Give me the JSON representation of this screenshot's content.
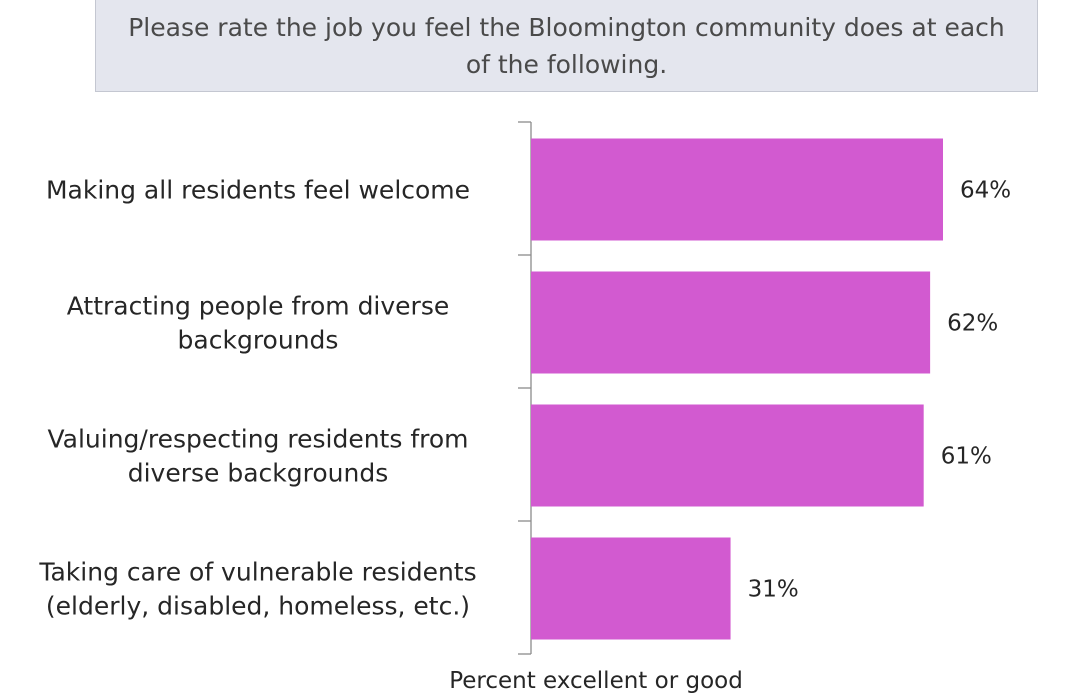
{
  "chart_data": {
    "type": "bar",
    "orientation": "horizontal",
    "title": "Please rate the job you feel the Bloomington community does at each of the following.",
    "xlabel": "Percent excellent or good",
    "ylabel": "",
    "categories": [
      [
        "Making all residents feel welcome"
      ],
      [
        "Attracting people from diverse",
        "backgrounds"
      ],
      [
        "Valuing/respecting residents from",
        "diverse backgrounds"
      ],
      [
        "Taking care of vulnerable residents",
        "(elderly, disabled, homeless, etc.)"
      ]
    ],
    "values": [
      64,
      62,
      61,
      31
    ],
    "value_labels": [
      "64%",
      "62%",
      "61%",
      "31%"
    ],
    "xlim": [
      0,
      100
    ],
    "grid": false,
    "legend": "none",
    "bar_color": "#d25ad0"
  }
}
